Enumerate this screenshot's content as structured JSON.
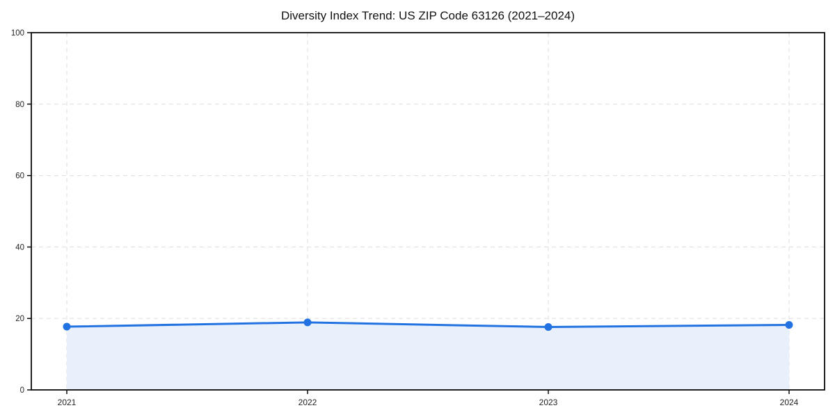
{
  "chart_data": {
    "type": "area",
    "title": "Diversity Index Trend: US ZIP Code 63126 (2021–2024)",
    "categories": [
      "2021",
      "2022",
      "2023",
      "2024"
    ],
    "series": [
      {
        "name": "Diversity Index",
        "values": [
          17.7,
          18.9,
          17.6,
          18.2
        ]
      }
    ],
    "xlabel": "",
    "ylabel": "",
    "ylim": [
      0,
      100
    ],
    "yticks": [
      0,
      20,
      40,
      60,
      80,
      100
    ],
    "grid": true,
    "grid_style": "dashed",
    "legend": "none",
    "marker": "circle",
    "colors": {
      "line": "#2272e2",
      "marker": "#2272e2",
      "fill": "#e8f0fc",
      "grid": "#e2e2e2",
      "spine": "#0a0a0a",
      "background": "#ffffff",
      "text": "#111111"
    }
  }
}
